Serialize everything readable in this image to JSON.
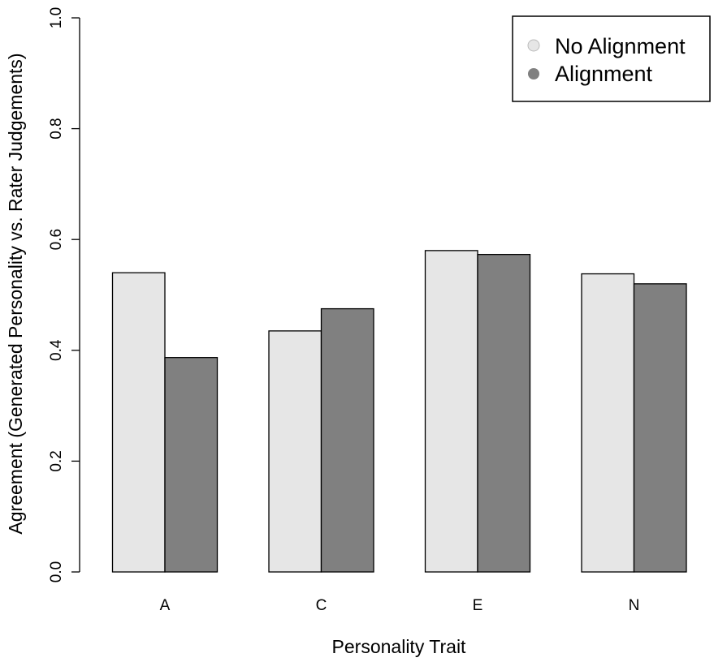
{
  "chart_data": {
    "type": "bar",
    "categories": [
      "A",
      "C",
      "E",
      "N"
    ],
    "series": [
      {
        "name": "No Alignment",
        "color": "#e6e6e6",
        "values": [
          0.54,
          0.435,
          0.58,
          0.538
        ]
      },
      {
        "name": "Alignment",
        "color": "#808080",
        "values": [
          0.387,
          0.475,
          0.573,
          0.52
        ]
      }
    ],
    "xlabel": "Personality Trait",
    "ylabel": "Agreement (Generated Personality vs. Rater Judgements)",
    "ylim": [
      0,
      1.0
    ],
    "yticks": [
      "0.0",
      "0.2",
      "0.4",
      "0.6",
      "0.8",
      "1.0"
    ],
    "grid": false,
    "legend_position": "top-right"
  }
}
